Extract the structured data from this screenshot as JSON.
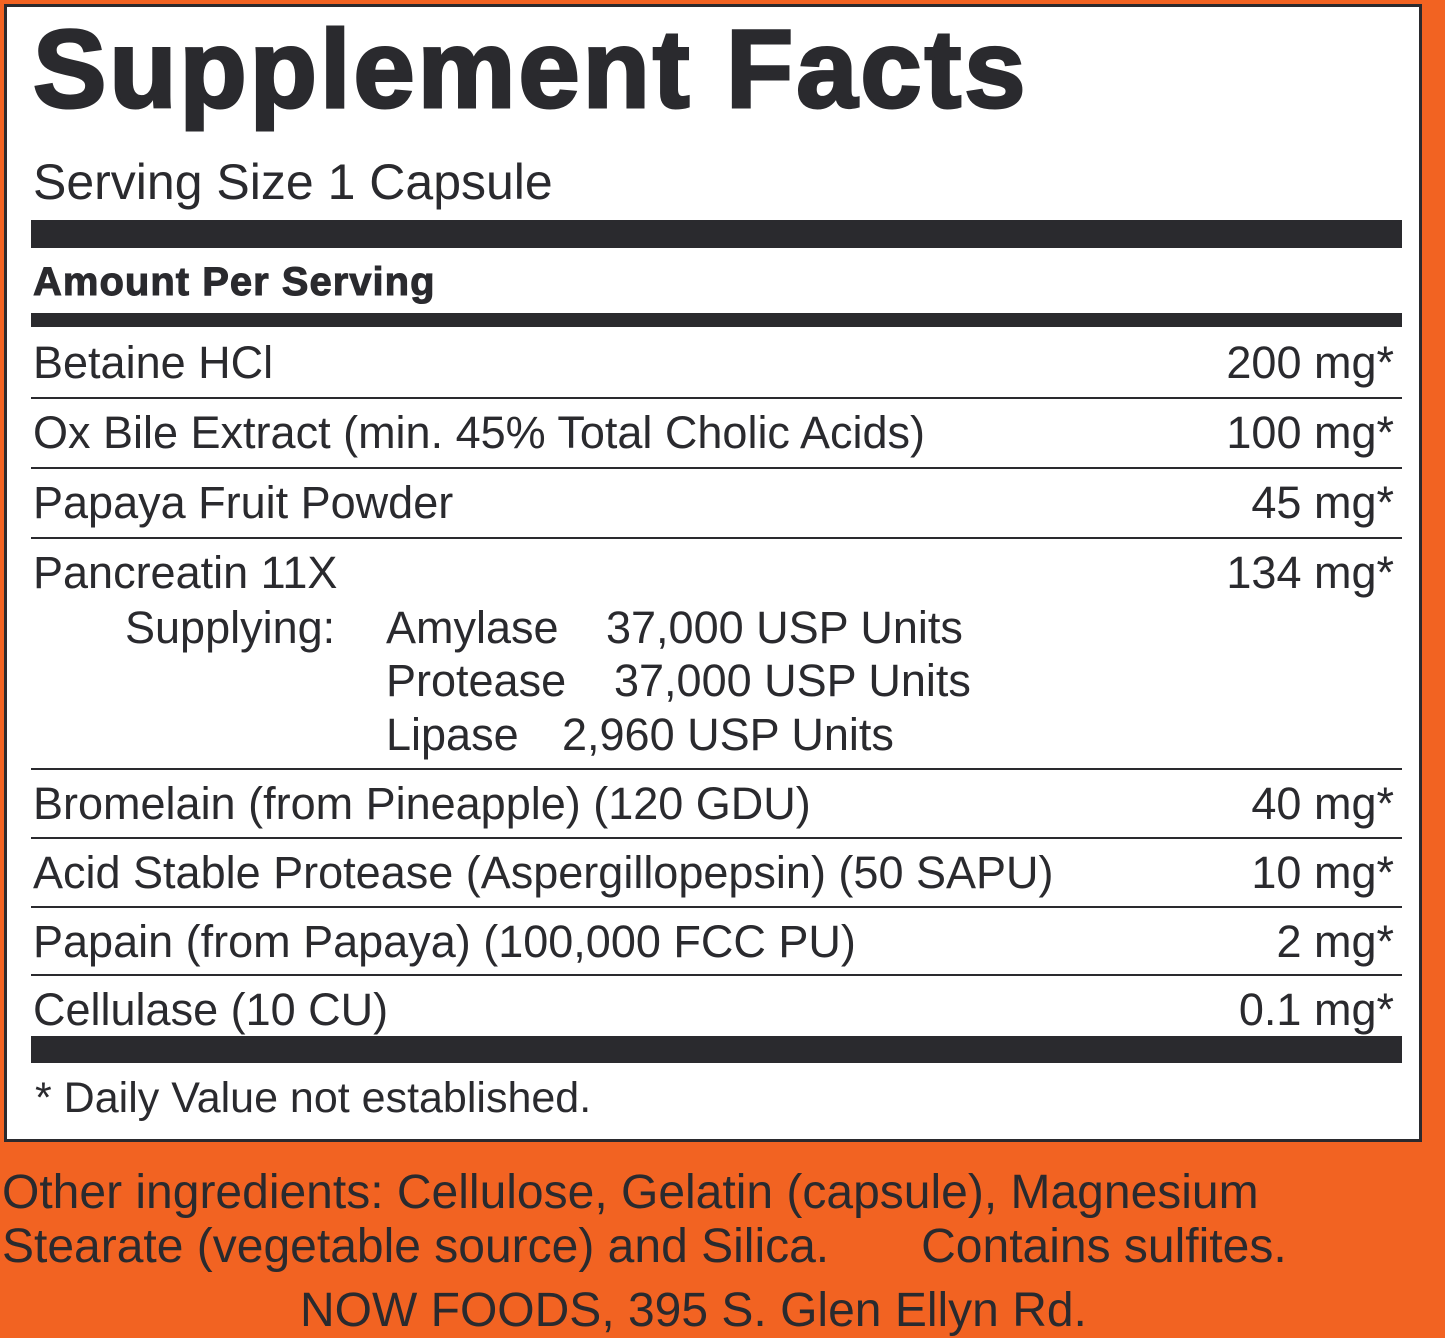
{
  "header": {
    "title": "Supplement Facts",
    "serving_size": "Serving Size 1 Capsule",
    "amount_per_serving": "Amount Per Serving"
  },
  "ingredients": [
    {
      "name": "Betaine HCl",
      "amount": "200 mg*"
    },
    {
      "name": "Ox Bile Extract (min. 45% Total Cholic Acids)",
      "amount": "100 mg*"
    },
    {
      "name": "Papaya Fruit Powder",
      "amount": "45 mg*"
    },
    {
      "name": "Pancreatin 11X",
      "amount": "134 mg*",
      "supplying_label": "Supplying:",
      "components": [
        {
          "name": "Amylase",
          "value": "37,000 USP Units"
        },
        {
          "name": "Protease",
          "value": "37,000 USP Units"
        },
        {
          "name": "Lipase",
          "value": "2,960 USP Units"
        }
      ]
    },
    {
      "name": "Bromelain (from Pineapple) (120 GDU)",
      "amount": "40 mg*"
    },
    {
      "name": "Acid Stable Protease (Aspergillopepsin) (50 SAPU)",
      "amount": "10 mg*"
    },
    {
      "name": "Papain (from Papaya) (100,000 FCC PU)",
      "amount": "2 mg*"
    },
    {
      "name": "Cellulase (10 CU)",
      "amount": "0.1 mg*"
    }
  ],
  "footnote": "* Daily Value not established.",
  "other_ingredients": {
    "line1": "Other ingredients: Cellulose, Gelatin (capsule), Magnesium",
    "line2": "Stearate (vegetable source) and Silica.",
    "sulfites": "Contains sulfites.",
    "cut_off": "NOW FOODS, 395 S. Glen Ellyn Rd."
  },
  "colors": {
    "background": "#f26322",
    "panel": "#ffffff",
    "ink": "#2a2a2e"
  }
}
